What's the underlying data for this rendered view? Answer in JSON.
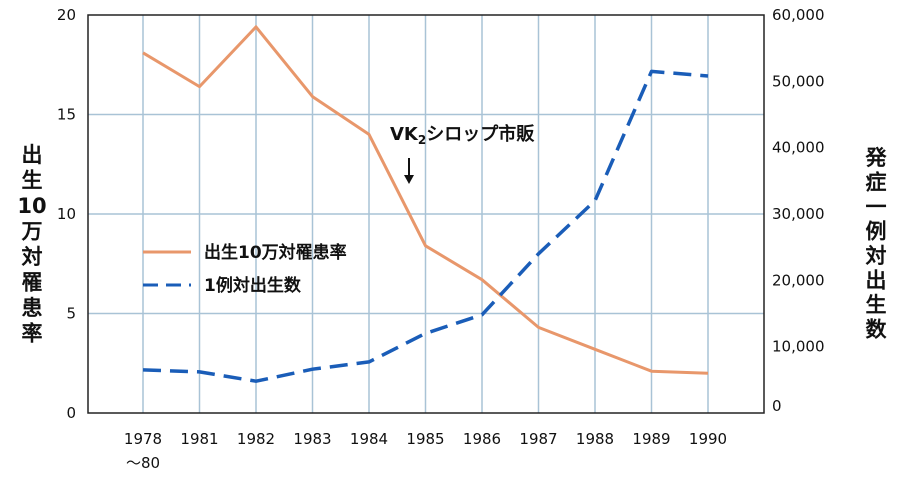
{
  "chart_data": {
    "type": "line",
    "categories": [
      "1978",
      "1981",
      "1982",
      "1983",
      "1984",
      "1985",
      "1986",
      "1987",
      "1988",
      "1989",
      "1990"
    ],
    "category_sublabels": [
      "～80",
      "",
      "",
      "",
      "",
      "",
      "",
      "",
      "",
      "",
      ""
    ],
    "series": [
      {
        "name": "出生10万対罹患率",
        "axis": "left",
        "style": "solid",
        "color": "#E8976B",
        "values": [
          18.1,
          16.4,
          19.4,
          15.9,
          14.0,
          8.4,
          6.7,
          4.3,
          3.2,
          2.1,
          2.0
        ]
      },
      {
        "name": "1例対出生数",
        "axis": "right",
        "style": "dashed",
        "color": "#1A5DB8",
        "values": [
          6500,
          6200,
          4800,
          6600,
          7700,
          12000,
          14800,
          24000,
          32000,
          51500,
          50800
        ]
      }
    ],
    "y_left": {
      "label": "出生10万対罹患率",
      "ylim": [
        0,
        20
      ],
      "ticks": [
        "0",
        "5",
        "10",
        "15",
        "20"
      ]
    },
    "y_right": {
      "label": "発症一例対出生数",
      "ylim": [
        0,
        60000
      ],
      "ticks": [
        "0",
        "10,000",
        "20,000",
        "30,000",
        "40,000",
        "50,000",
        "60,000"
      ]
    },
    "grid": true,
    "legend_placement": "center-left",
    "annotation": {
      "text": "VK",
      "subscript": "2",
      "text_after": "シロップ市販",
      "at_x_between": [
        "1984",
        "1985"
      ],
      "arrow": "down"
    }
  }
}
